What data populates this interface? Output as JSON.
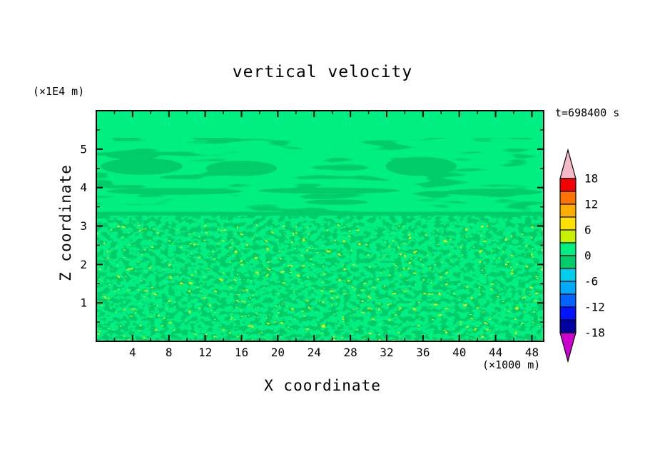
{
  "figure": {
    "title": "vertical velocity",
    "time_label": "t=698400 s",
    "y_unit_label": "(×1E4 m)",
    "x_unit_label": "(×1000 m)",
    "x_axis_label": "X coordinate",
    "y_axis_label": "Z coordinate"
  },
  "chart_data": {
    "type": "heatmap",
    "title": "vertical velocity",
    "xlabel": "X coordinate",
    "ylabel": "Z coordinate",
    "x_unit": "×1000 m",
    "y_unit": "×1E4 m",
    "time_annotation": "t=698400 s",
    "x_range": [
      0,
      49.3
    ],
    "y_range": [
      0,
      6
    ],
    "x_major_ticks": [
      4,
      8,
      12,
      16,
      20,
      24,
      28,
      32,
      36,
      40,
      44,
      48
    ],
    "x_minor_step": 2,
    "y_major_ticks": [
      1,
      2,
      3,
      4,
      5
    ],
    "y_minor_step": 0.5,
    "grid": false,
    "legend_position": "right",
    "colorbar": {
      "position": "right",
      "levels": [
        -18,
        -15,
        -12,
        -9,
        -6,
        -3,
        0,
        3,
        6,
        9,
        12,
        15,
        18
      ],
      "labeled_levels": [
        18,
        12,
        6,
        0,
        -6,
        -12,
        -18
      ],
      "colors_low_to_high": [
        "#0000a0",
        "#0014ff",
        "#0064ff",
        "#00aaff",
        "#00cdeb",
        "#00cd69",
        "#00ef82",
        "#c8f000",
        "#ffe100",
        "#ffaf00",
        "#ff7300",
        "#f50000"
      ],
      "under_arrow_color": "#cd00cd",
      "over_arrow_color": "#f5b9c8"
    },
    "field": {
      "description": "Vertical velocity mostly near zero (0..+3 band, spring green). Thin weak-negative (-3..0 band) horizontal streak layers between z=3.2 and 5.0 (x1E4 m), a nearly continuous thin negative band at z=3.3, and a finely turbulent region below z=3.1 with mixed weak cells and sparse stronger updraft dots (+3..+6 band).",
      "base_band": [
        0,
        3
      ],
      "base_color": "#00ef82",
      "negative_band_color": "#00cd69",
      "updraft_dot_color": "#e8f200",
      "turbulent_region_top_z": 3.12,
      "updraft_dot_region_top_z": 2.9,
      "negative_band": {
        "z": 3.32,
        "half_thickness": 0.05
      },
      "negative_patches": [
        {
          "x": 5.0,
          "z": 4.55,
          "rx": 4.5,
          "rz": 0.22
        },
        {
          "x": 4.0,
          "z": 4.85,
          "rx": 3.0,
          "rz": 0.12
        },
        {
          "x": 16.0,
          "z": 4.5,
          "rx": 3.9,
          "rz": 0.2
        },
        {
          "x": 27.5,
          "z": 4.52,
          "rx": 2.5,
          "rz": 0.08
        },
        {
          "x": 35.8,
          "z": 4.55,
          "rx": 3.9,
          "rz": 0.25
        },
        {
          "x": 8.6,
          "z": 3.9,
          "rx": 7.5,
          "rz": 0.09
        },
        {
          "x": 25.6,
          "z": 3.92,
          "rx": 7.8,
          "rz": 0.08
        },
        {
          "x": 43.6,
          "z": 3.88,
          "rx": 5.5,
          "rz": 0.09
        },
        {
          "x": 26.5,
          "z": 3.62,
          "rx": 3.5,
          "rz": 0.07
        },
        {
          "x": 44.5,
          "z": 3.83,
          "rx": 2.0,
          "rz": 0.08
        }
      ]
    }
  }
}
